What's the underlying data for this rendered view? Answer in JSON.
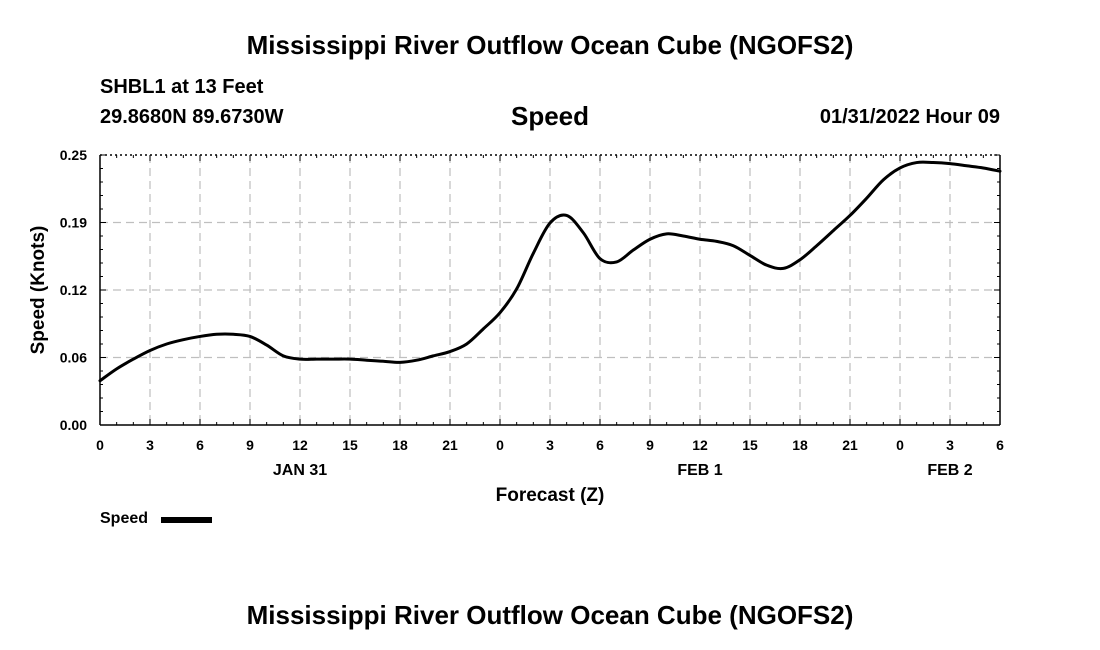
{
  "page": {
    "title_top": "Mississippi River Outflow Ocean Cube (NGOFS2)",
    "title_bottom": "Mississippi River Outflow Ocean Cube (NGOFS2)",
    "station": "SHBL1 at 13 Feet",
    "coords": "29.8680N  89.6730W",
    "date": "01/31/2022 Hour 09"
  },
  "legend": {
    "label": "Speed"
  },
  "colors": {
    "line": "#000000",
    "grid": "#bfbfbf",
    "background": "#ffffff"
  },
  "chart_data": {
    "type": "line",
    "title": "Speed",
    "xlabel": "Forecast (Z)",
    "ylabel": "Speed (Knots)",
    "xlim": [
      0,
      54
    ],
    "ylim": [
      0,
      0.25
    ],
    "x_ticks": [
      0,
      3,
      6,
      9,
      12,
      15,
      18,
      21,
      24,
      27,
      30,
      33,
      36,
      39,
      42,
      45,
      48,
      51,
      54
    ],
    "x_tick_labels": [
      "0",
      "3",
      "6",
      "9",
      "12",
      "15",
      "18",
      "21",
      "0",
      "3",
      "6",
      "9",
      "12",
      "15",
      "18",
      "21",
      "0",
      "3",
      "6"
    ],
    "y_ticks": [
      0.0,
      0.0625,
      0.125,
      0.1875,
      0.25
    ],
    "y_tick_labels": [
      "0.00",
      "0.06",
      "0.12",
      "0.19",
      "0.25"
    ],
    "date_labels": [
      {
        "x": 12,
        "label": "JAN 31"
      },
      {
        "x": 36,
        "label": "FEB 1"
      },
      {
        "x": 51,
        "label": "FEB 2"
      }
    ],
    "grid": true,
    "series": [
      {
        "name": "Speed",
        "x": [
          0,
          1,
          2,
          3,
          4,
          5,
          6,
          7,
          8,
          9,
          10,
          11,
          12,
          13,
          14,
          15,
          16,
          17,
          18,
          19,
          20,
          21,
          22,
          23,
          24,
          25,
          26,
          27,
          28,
          29,
          30,
          31,
          32,
          33,
          34,
          35,
          36,
          37,
          38,
          39,
          40,
          41,
          42,
          43,
          44,
          45,
          46,
          47,
          48,
          49,
          50,
          51,
          52,
          53,
          54
        ],
        "values": [
          0.041,
          0.052,
          0.061,
          0.069,
          0.075,
          0.079,
          0.082,
          0.084,
          0.084,
          0.082,
          0.074,
          0.064,
          0.061,
          0.061,
          0.061,
          0.061,
          0.06,
          0.059,
          0.058,
          0.06,
          0.064,
          0.068,
          0.075,
          0.089,
          0.104,
          0.126,
          0.159,
          0.187,
          0.194,
          0.178,
          0.154,
          0.151,
          0.162,
          0.172,
          0.177,
          0.175,
          0.172,
          0.17,
          0.166,
          0.157,
          0.148,
          0.145,
          0.153,
          0.166,
          0.18,
          0.194,
          0.21,
          0.227,
          0.238,
          0.243,
          0.243,
          0.242,
          0.24,
          0.238,
          0.235
        ]
      }
    ]
  }
}
